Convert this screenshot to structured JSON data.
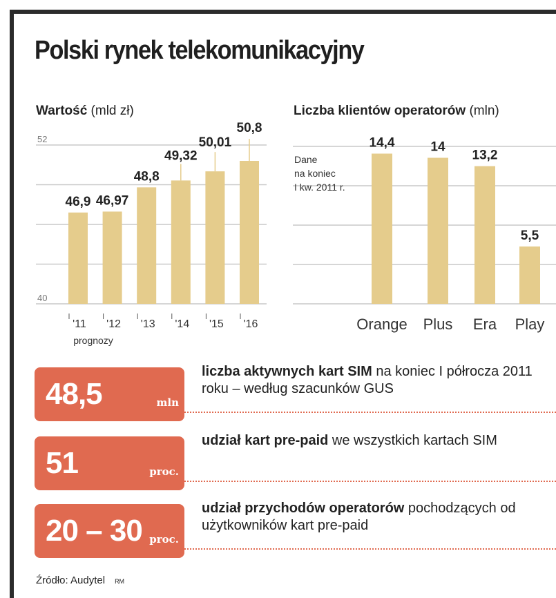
{
  "title": "Polski rynek telekomunikacyjny",
  "colors": {
    "bar": "#e5cc8c",
    "accent": "#e06a50",
    "frame": "#2b2b2b",
    "grid": "#c9c9c9"
  },
  "chart_data": [
    {
      "type": "bar",
      "title_bold": "Wartość",
      "title_unit": "(mld zł)",
      "categories": [
        "'11",
        "'12",
        "'13",
        "'14",
        "'15",
        "'16"
      ],
      "values": [
        46.9,
        46.97,
        48.8,
        49.32,
        50.01,
        50.8
      ],
      "value_labels": [
        "46,9",
        "46,97",
        "48,8",
        "49,32",
        "50,01",
        "50,8"
      ],
      "ylim": [
        40,
        52
      ],
      "ytick_labels": [
        "52",
        "40"
      ],
      "note": "prognozy",
      "grid": true
    },
    {
      "type": "bar",
      "title_bold": "Liczba klientów operatorów",
      "title_unit": "(mln)",
      "categories": [
        "Orange",
        "Plus",
        "Era",
        "Play"
      ],
      "values": [
        14.4,
        14,
        13.2,
        5.5
      ],
      "value_labels": [
        "14,4",
        "14",
        "13,2",
        "5,5"
      ],
      "ylim": [
        0,
        17
      ],
      "annotation": [
        "Dane",
        "na koniec",
        "I kw. 2011 r."
      ],
      "grid": true
    }
  ],
  "stats": [
    {
      "value": "48,5",
      "unit": "mln",
      "desc_bold": "liczba aktywnych kart SIM",
      "desc_rest": " na koniec I półrocza 2011 roku – według szacunków GUS"
    },
    {
      "value": "51",
      "unit": "proc.",
      "desc_bold": "udział kart pre-paid",
      "desc_rest": " we wszystkich kartach SIM"
    },
    {
      "value": "20 – 30",
      "unit": "proc.",
      "desc_bold": "udział przychodów operatorów",
      "desc_rest": " pochodzących od użytkowników kart pre-paid"
    }
  ],
  "source": "Źródło: Audytel",
  "credit": "RM"
}
